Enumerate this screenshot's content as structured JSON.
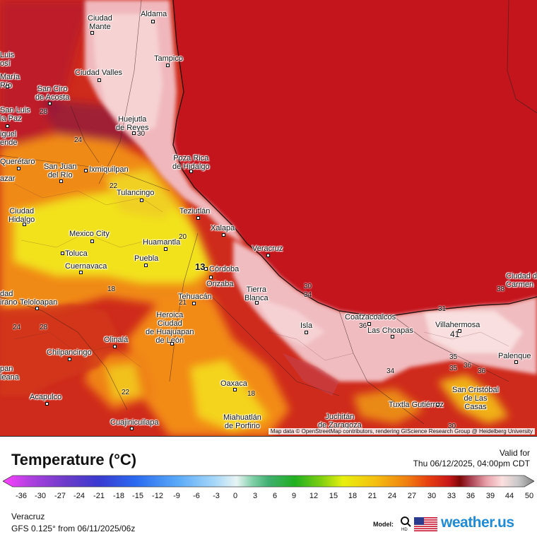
{
  "legend": {
    "title": "Temperature (°C)",
    "ticks": [
      "-36",
      "-30",
      "-27",
      "-24",
      "-21",
      "-18",
      "-15",
      "-12",
      "-9",
      "-6",
      "-3",
      "0",
      "3",
      "6",
      "9",
      "12",
      "15",
      "18",
      "21",
      "24",
      "27",
      "30",
      "33",
      "36",
      "39",
      "44",
      "50"
    ]
  },
  "valid": {
    "label": "Valid for",
    "time": "Thu 06/12/2025, 04:00pm CDT"
  },
  "footer": {
    "location": "Veracruz",
    "model_run": "GFS 0.125° from  06/11/2025/06z",
    "model_label": "Model:",
    "brand": "weather.us"
  },
  "map": {
    "attribution": "Map data © OpenStreetMap contributors, rendering GIScience Research Group @ Heidelberg University",
    "cities": [
      "Aldama",
      "Ciudad\nMante",
      "Tampico",
      "Ciudad Valles",
      "San Ciro\nde Acosta",
      "Huejutla\nde Reyes",
      "Poza Rica\nde Hidalgo",
      "Querétaro",
      "San Juan\ndel Río",
      "Ixmiquilpan",
      "Tulancingo",
      "Teziutlán",
      "Xalapa",
      "Ciudad\nHidalgo",
      "Mexico City",
      "Huamantla",
      "Toluca",
      "Cuernavaca",
      "Puebla",
      "Córdoba",
      "Orizaba",
      "Veracruz",
      "Tierra\nBlanca",
      "Tehuacán",
      "Teloloapan",
      "Heroica\nCiudad\nde Huajuapan\nde León",
      "Olinalá",
      "Chilpancingo",
      "Isla",
      "Coatzacoalcos",
      "Las Choapas",
      "Villahermosa",
      "Ciudad del\nCarmen",
      "Palenque",
      "Acapulco",
      "Oaxaca",
      "Cuajinicuilapa",
      "Miahuatlán\nde Porfirio",
      "Juchitán\nde Zaragoza",
      "Tuxtla Gutiérrez",
      "San Cristóbal\nde Las\nCasas",
      "Luis\nosí",
      "María\nRío",
      "San Luis\nla Paz",
      "iguel\nende",
      "azar",
      "dad\nirano",
      "pan\nleana"
    ],
    "temp_labels": [
      "28",
      "24",
      "30",
      "22",
      "20",
      "13",
      "18",
      "21",
      "24",
      "28",
      "30",
      "34",
      "34",
      "36",
      "36",
      "35",
      "35",
      "36",
      "41",
      "31",
      "38",
      "30",
      "22",
      "18"
    ]
  },
  "colors": {
    "sea": "#c8141c",
    "land_hot": "#d22a1e",
    "coastal_pink": "#f2c0c4"
  }
}
